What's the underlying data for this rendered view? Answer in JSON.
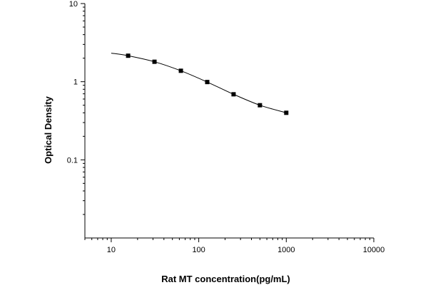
{
  "chart_data": {
    "type": "scatter",
    "title": "",
    "xlabel": "Rat MT concentration(pg/mL)",
    "ylabel": "Optical Density",
    "x_scale": "log",
    "y_scale": "log",
    "xlim": [
      5,
      10000
    ],
    "ylim": [
      0.01,
      10
    ],
    "x_ticks": [
      10,
      100,
      1000,
      10000
    ],
    "x_tick_labels": [
      "10",
      "100",
      "1000",
      "10000"
    ],
    "y_ticks": [
      0.1,
      1,
      10
    ],
    "y_tick_labels": [
      "0.1",
      "1",
      "10"
    ],
    "grid": false,
    "legend": "none",
    "series": [
      {
        "x": [
          15.6,
          31.2,
          62.5,
          125,
          250,
          500,
          1000
        ],
        "y": [
          2.15,
          1.8,
          1.38,
          0.99,
          0.69,
          0.5,
          0.4
        ],
        "marker": "square",
        "color": "#000000"
      }
    ],
    "fit_curve": {
      "x": [
        10,
        15.6,
        31.2,
        62.5,
        125,
        250,
        500,
        1000
      ],
      "y": [
        2.32,
        2.15,
        1.8,
        1.38,
        0.99,
        0.69,
        0.5,
        0.4
      ],
      "style": "smooth",
      "color": "#000000"
    }
  }
}
